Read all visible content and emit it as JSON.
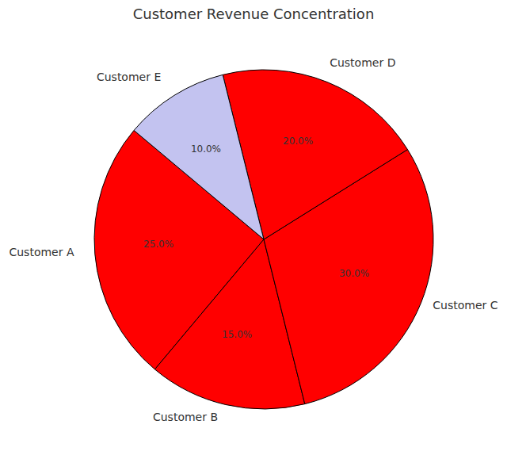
{
  "chart_data": {
    "type": "pie",
    "title": "Customer Revenue Concentration",
    "categories": [
      "Customer A",
      "Customer B",
      "Customer C",
      "Customer D",
      "Customer E"
    ],
    "values": [
      25,
      15,
      30,
      20,
      10
    ],
    "value_labels": [
      "25.0%",
      "15.0%",
      "30.0%",
      "20.0%",
      "10.0%"
    ],
    "colors": [
      "#ff0000",
      "#ff0000",
      "#ff0000",
      "#ff0000",
      "#c3c3f0"
    ],
    "data_labels": true
  }
}
